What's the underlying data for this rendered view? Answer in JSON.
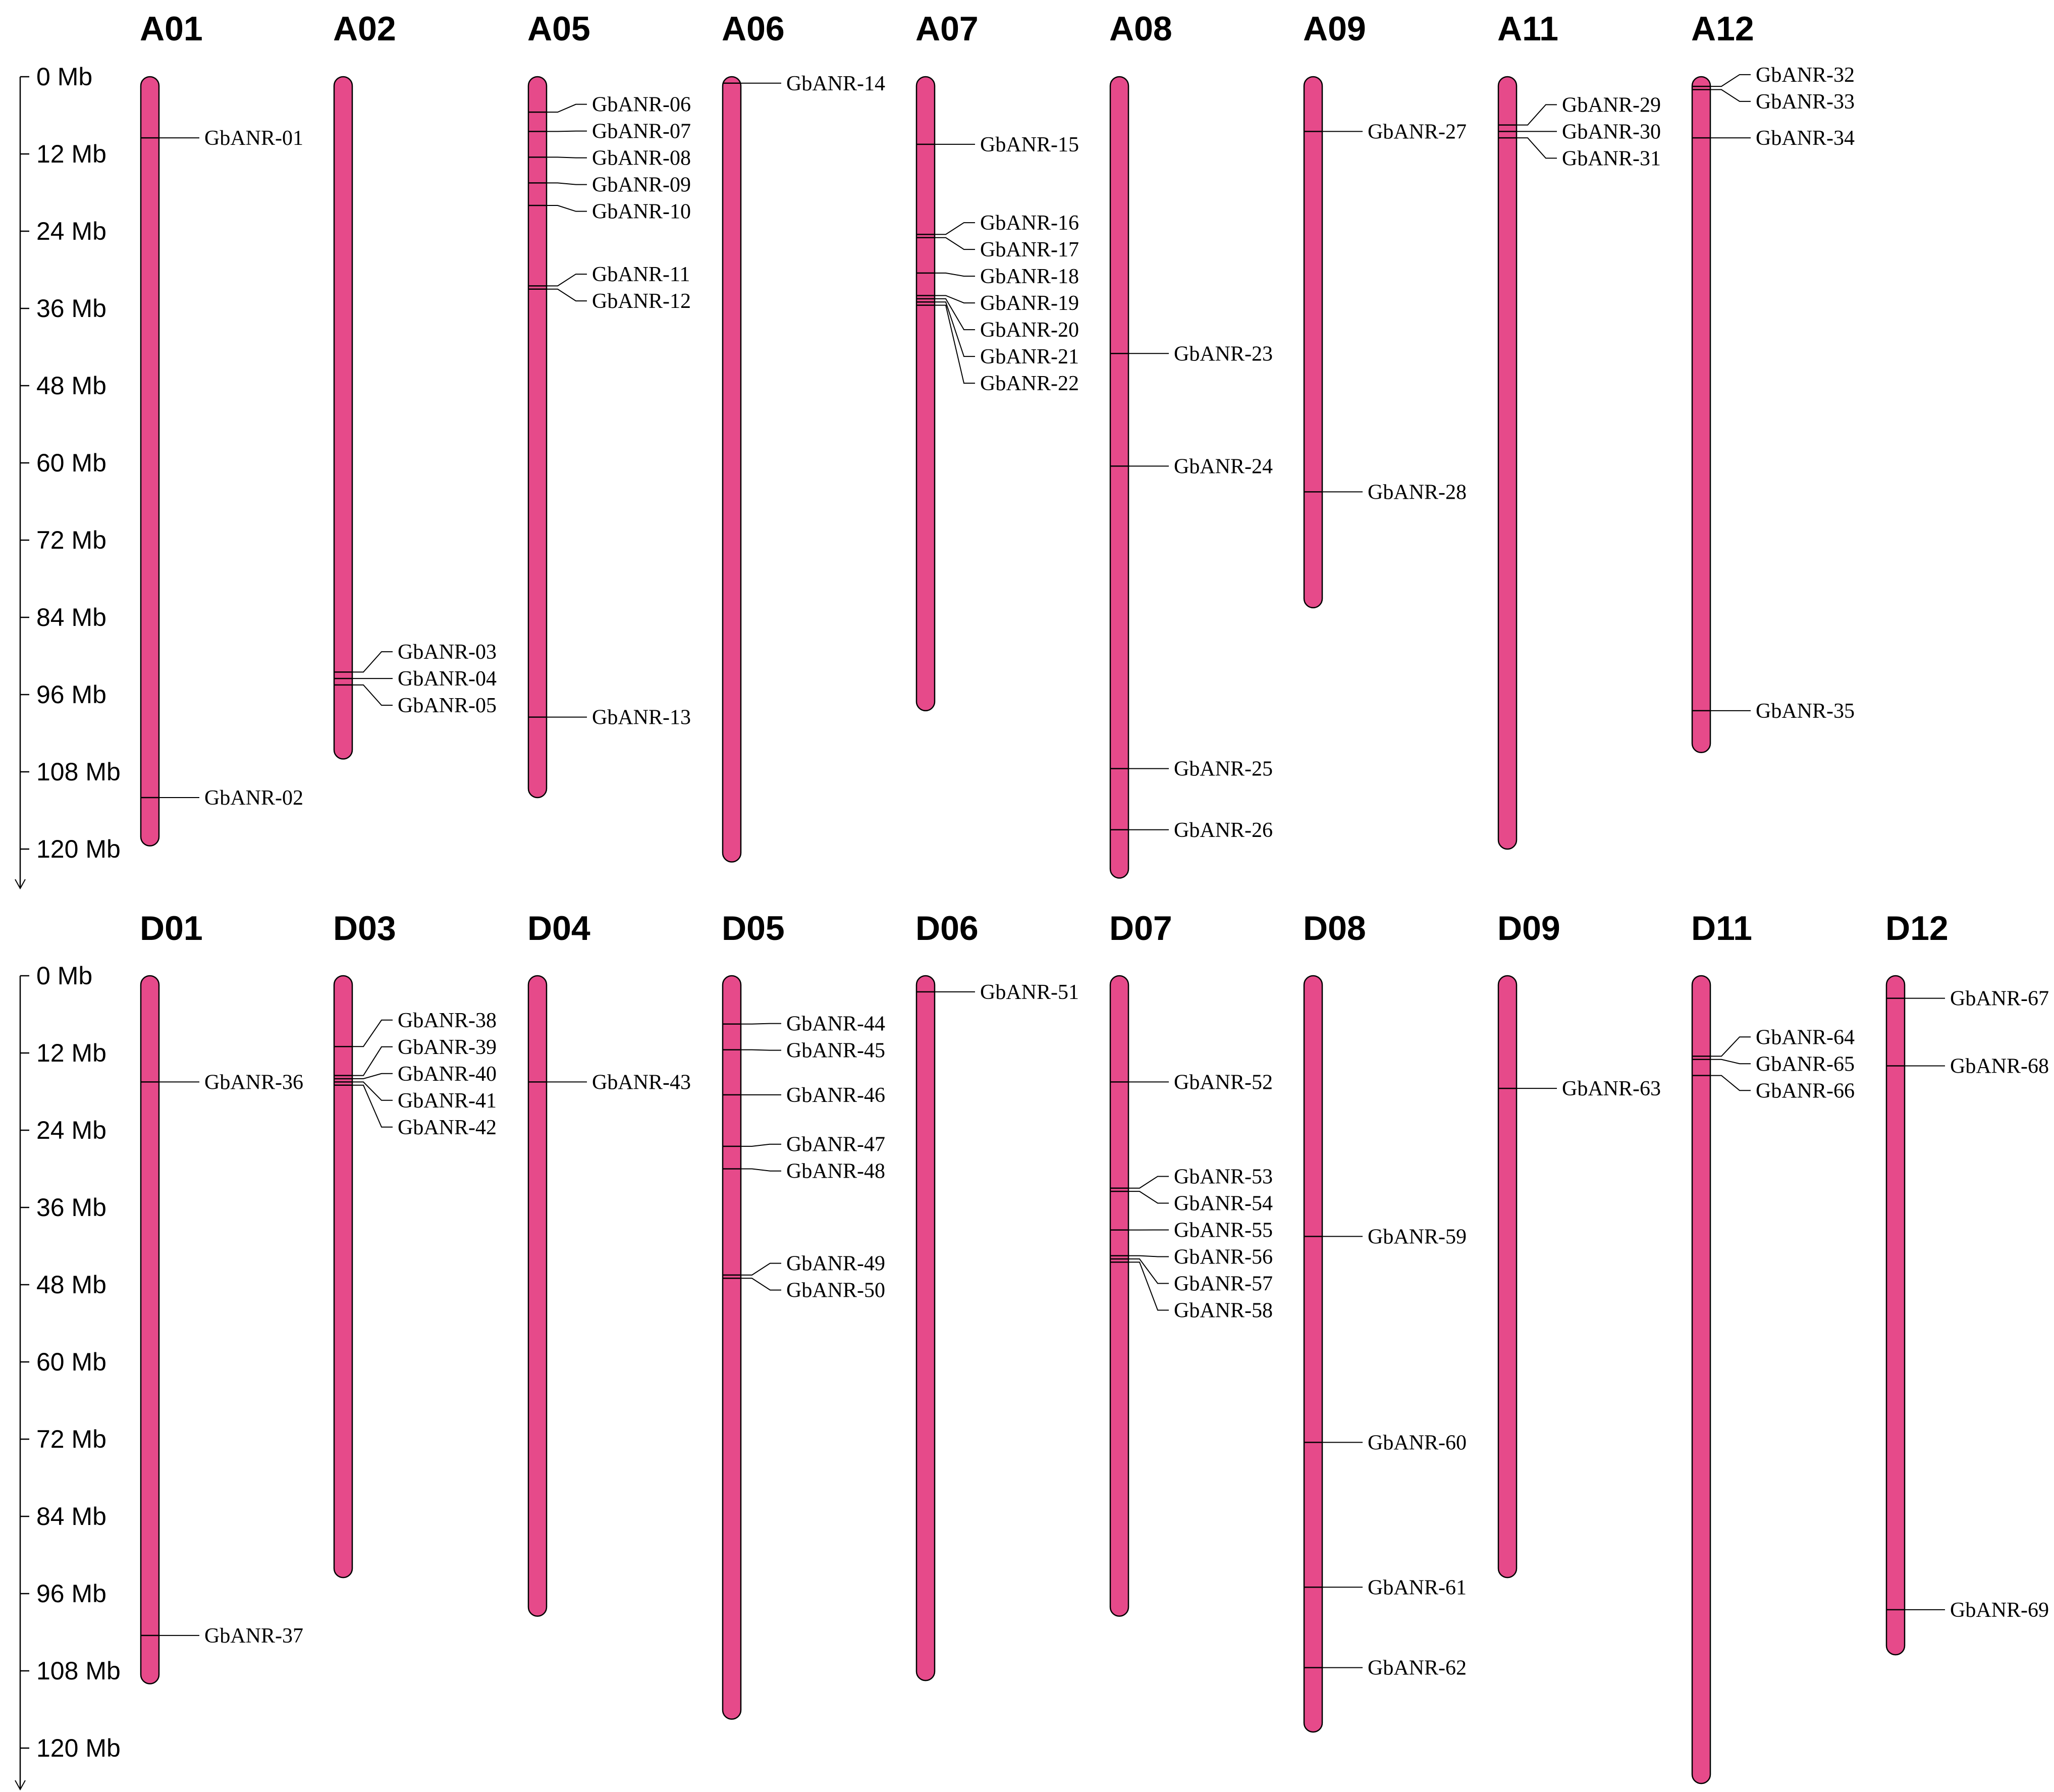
{
  "colors": {
    "chromosome": "#E64A8A",
    "outline": "#000000",
    "background": "#ffffff"
  },
  "axis": {
    "unit": "Mb",
    "ticks": [
      0,
      12,
      24,
      36,
      48,
      60,
      72,
      84,
      96,
      108,
      120
    ],
    "labels": [
      "0 Mb",
      "12 Mb",
      "24 Mb",
      "36 Mb",
      "48 Mb",
      "60 Mb",
      "72 Mb",
      "84 Mb",
      "96 Mb",
      "108 Mb",
      "120 Mb"
    ]
  },
  "rows": [
    {
      "id": "A",
      "chromosomes": [
        {
          "name": "A01",
          "length": 119.5,
          "genes": [
            {
              "id": "GbANR-01",
              "pos": 9.5
            },
            {
              "id": "GbANR-02",
              "pos": 112.0
            }
          ]
        },
        {
          "name": "A02",
          "length": 106.0,
          "genes": [
            {
              "id": "GbANR-03",
              "pos": 92.5
            },
            {
              "id": "GbANR-04",
              "pos": 93.5
            },
            {
              "id": "GbANR-05",
              "pos": 94.5
            }
          ]
        },
        {
          "name": "A05",
          "length": 112.0,
          "genes": [
            {
              "id": "GbANR-06",
              "pos": 5.5
            },
            {
              "id": "GbANR-07",
              "pos": 8.5
            },
            {
              "id": "GbANR-08",
              "pos": 12.5
            },
            {
              "id": "GbANR-09",
              "pos": 16.5
            },
            {
              "id": "GbANR-10",
              "pos": 20.0
            },
            {
              "id": "GbANR-11",
              "pos": 32.5
            },
            {
              "id": "GbANR-12",
              "pos": 33.0
            },
            {
              "id": "GbANR-13",
              "pos": 99.5
            }
          ]
        },
        {
          "name": "A06",
          "length": 122.0,
          "genes": [
            {
              "id": "GbANR-14",
              "pos": 1.0
            }
          ]
        },
        {
          "name": "A07",
          "length": 98.5,
          "genes": [
            {
              "id": "GbANR-15",
              "pos": 10.5
            },
            {
              "id": "GbANR-16",
              "pos": 24.5
            },
            {
              "id": "GbANR-17",
              "pos": 25.0
            },
            {
              "id": "GbANR-18",
              "pos": 30.5
            },
            {
              "id": "GbANR-19",
              "pos": 34.0
            },
            {
              "id": "GbANR-20",
              "pos": 34.5
            },
            {
              "id": "GbANR-21",
              "pos": 35.0
            },
            {
              "id": "GbANR-22",
              "pos": 35.5
            }
          ]
        },
        {
          "name": "A08",
          "length": 124.5,
          "genes": [
            {
              "id": "GbANR-23",
              "pos": 43.0
            },
            {
              "id": "GbANR-24",
              "pos": 60.5
            },
            {
              "id": "GbANR-25",
              "pos": 107.5
            },
            {
              "id": "GbANR-26",
              "pos": 117.0
            }
          ]
        },
        {
          "name": "A09",
          "length": 82.5,
          "genes": [
            {
              "id": "GbANR-27",
              "pos": 8.5
            },
            {
              "id": "GbANR-28",
              "pos": 64.5
            }
          ]
        },
        {
          "name": "A11",
          "length": 120.0,
          "genes": [
            {
              "id": "GbANR-29",
              "pos": 7.5
            },
            {
              "id": "GbANR-30",
              "pos": 8.5
            },
            {
              "id": "GbANR-31",
              "pos": 9.5
            }
          ]
        },
        {
          "name": "A12",
          "length": 105.0,
          "genes": [
            {
              "id": "GbANR-32",
              "pos": 1.5
            },
            {
              "id": "GbANR-33",
              "pos": 2.0
            },
            {
              "id": "GbANR-34",
              "pos": 9.5
            },
            {
              "id": "GbANR-35",
              "pos": 98.5
            }
          ]
        }
      ]
    },
    {
      "id": "D",
      "chromosomes": [
        {
          "name": "D01",
          "length": 110.0,
          "genes": [
            {
              "id": "GbANR-36",
              "pos": 16.5
            },
            {
              "id": "GbANR-37",
              "pos": 102.5
            }
          ]
        },
        {
          "name": "D03",
          "length": 93.5,
          "genes": [
            {
              "id": "GbANR-38",
              "pos": 11.0
            },
            {
              "id": "GbANR-39",
              "pos": 15.5
            },
            {
              "id": "GbANR-40",
              "pos": 16.0
            },
            {
              "id": "GbANR-41",
              "pos": 16.5
            },
            {
              "id": "GbANR-42",
              "pos": 17.0
            }
          ]
        },
        {
          "name": "D04",
          "length": 99.5,
          "genes": [
            {
              "id": "GbANR-43",
              "pos": 16.5
            }
          ]
        },
        {
          "name": "D05",
          "length": 115.5,
          "genes": [
            {
              "id": "GbANR-44",
              "pos": 7.5
            },
            {
              "id": "GbANR-45",
              "pos": 11.5
            },
            {
              "id": "GbANR-46",
              "pos": 18.5
            },
            {
              "id": "GbANR-47",
              "pos": 26.5
            },
            {
              "id": "GbANR-48",
              "pos": 30.0
            },
            {
              "id": "GbANR-49",
              "pos": 46.5
            },
            {
              "id": "GbANR-50",
              "pos": 47.0
            }
          ]
        },
        {
          "name": "D06",
          "length": 109.5,
          "genes": [
            {
              "id": "GbANR-51",
              "pos": 2.5
            }
          ]
        },
        {
          "name": "D07",
          "length": 99.5,
          "genes": [
            {
              "id": "GbANR-52",
              "pos": 16.5
            },
            {
              "id": "GbANR-53",
              "pos": 33.0
            },
            {
              "id": "GbANR-54",
              "pos": 33.5
            },
            {
              "id": "GbANR-55",
              "pos": 39.5
            },
            {
              "id": "GbANR-56",
              "pos": 43.5
            },
            {
              "id": "GbANR-57",
              "pos": 44.0
            },
            {
              "id": "GbANR-58",
              "pos": 44.5
            }
          ]
        },
        {
          "name": "D08",
          "length": 117.5,
          "genes": [
            {
              "id": "GbANR-59",
              "pos": 40.5
            },
            {
              "id": "GbANR-60",
              "pos": 72.5
            },
            {
              "id": "GbANR-61",
              "pos": 95.0
            },
            {
              "id": "GbANR-62",
              "pos": 107.5
            }
          ]
        },
        {
          "name": "D09",
          "length": 93.5,
          "genes": [
            {
              "id": "GbANR-63",
              "pos": 17.5
            }
          ]
        },
        {
          "name": "D11",
          "length": 125.5,
          "genes": [
            {
              "id": "GbANR-64",
              "pos": 12.5
            },
            {
              "id": "GbANR-65",
              "pos": 13.0
            },
            {
              "id": "GbANR-66",
              "pos": 15.5
            }
          ]
        },
        {
          "name": "D12",
          "length": 105.5,
          "genes": [
            {
              "id": "GbANR-67",
              "pos": 3.5
            },
            {
              "id": "GbANR-68",
              "pos": 14.0
            },
            {
              "id": "GbANR-69",
              "pos": 98.5
            }
          ]
        }
      ]
    }
  ]
}
